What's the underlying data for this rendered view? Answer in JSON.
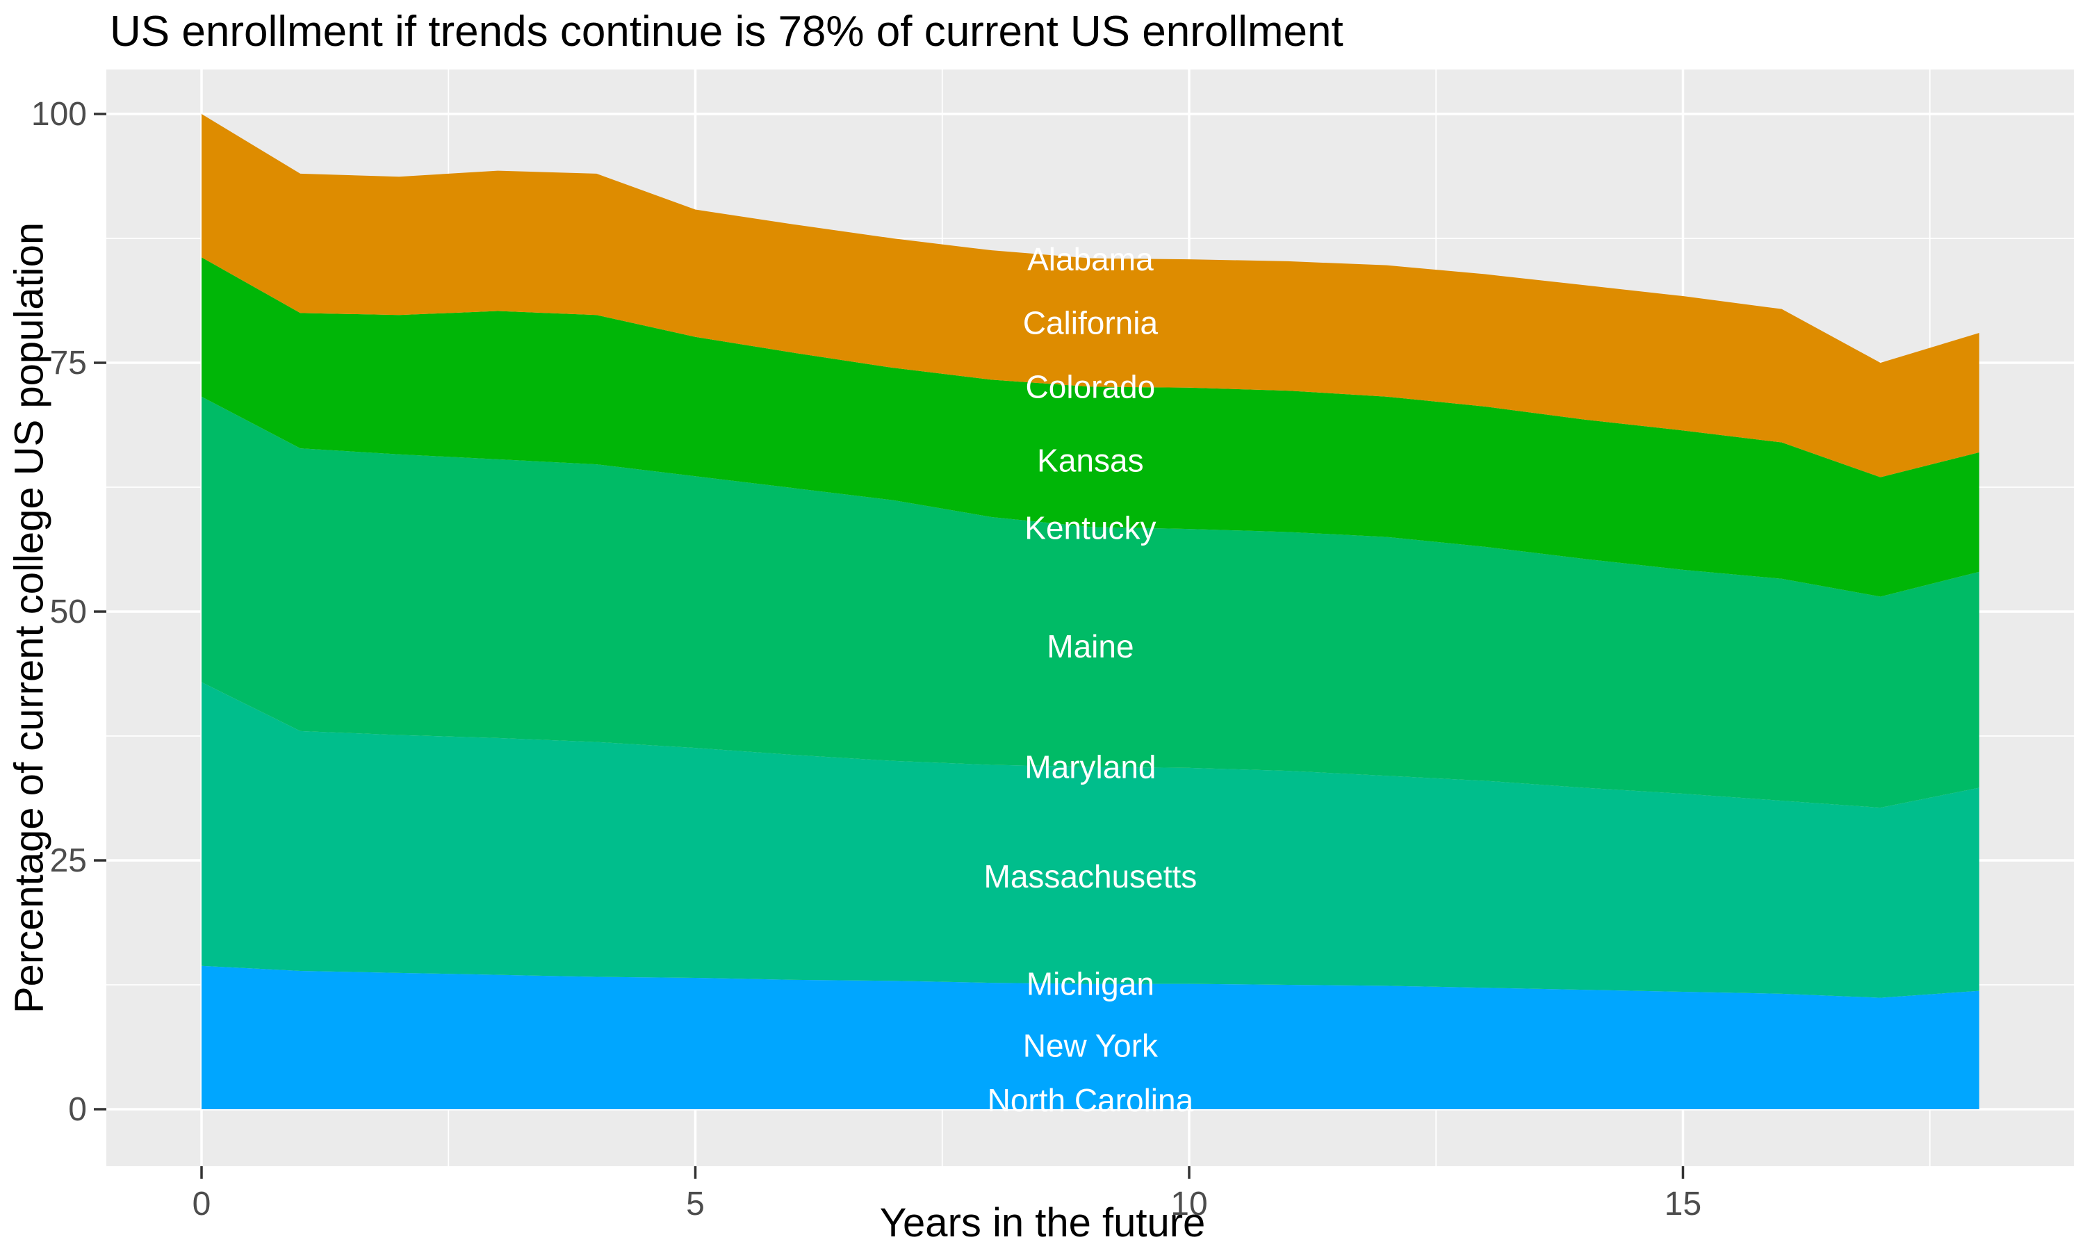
{
  "page": {
    "background": "#FFFFFF"
  },
  "chart_data": {
    "type": "area",
    "variant": "stacked",
    "title": "US enrollment if trends continue is 78% of current US enrollment",
    "xlabel": "Years in the future",
    "ylabel": "Percentage of current college US population",
    "legend_position": "none",
    "grid": "on",
    "panel_background": "#EBEBEB",
    "gridline_color": "#FFFFFF",
    "tick_color": "#333333",
    "tick_label_color": "#4D4D4D",
    "xlim": [
      0,
      18
    ],
    "ylim": [
      0,
      100
    ],
    "x_major_ticks": [
      0,
      5,
      10,
      15
    ],
    "x_minor_ticks": [
      2.5,
      7.5,
      12.5,
      17.5
    ],
    "y_major_ticks": [
      0,
      25,
      50,
      75,
      100
    ],
    "y_minor_ticks": [
      12.5,
      37.5,
      62.5,
      87.5
    ],
    "x": [
      0,
      1,
      2,
      3,
      4,
      5,
      6,
      7,
      8,
      9,
      10,
      11,
      12,
      13,
      14,
      15,
      16,
      17,
      18
    ],
    "series": [
      {
        "name": "New York",
        "color": "#00A6FF",
        "cumulative_top": [
          14.4,
          13.9,
          13.7,
          13.5,
          13.3,
          13.2,
          13.0,
          12.9,
          12.7,
          12.6,
          12.6,
          12.5,
          12.4,
          12.2,
          12.0,
          11.8,
          11.6,
          11.2,
          11.9
        ]
      },
      {
        "name": "Massachusetts",
        "color": "#00BE8C",
        "cumulative_top": [
          42.9,
          38.0,
          37.6,
          37.3,
          36.9,
          36.3,
          35.6,
          35.0,
          34.6,
          34.4,
          34.3,
          34.0,
          33.5,
          33.0,
          32.3,
          31.7,
          31.0,
          30.3,
          32.3
        ]
      },
      {
        "name": "Maine",
        "color": "#00BB66",
        "cumulative_top": [
          71.6,
          66.4,
          65.8,
          65.3,
          64.8,
          63.6,
          62.4,
          61.2,
          59.5,
          58.5,
          58.3,
          58.0,
          57.5,
          56.5,
          55.3,
          54.2,
          53.3,
          51.5,
          54.0
        ]
      },
      {
        "name": "Kansas",
        "color": "#00B607",
        "cumulative_top": [
          85.6,
          80.0,
          79.8,
          80.2,
          79.8,
          77.6,
          76.0,
          74.5,
          73.3,
          72.6,
          72.5,
          72.2,
          71.6,
          70.6,
          69.3,
          68.2,
          67.0,
          63.5,
          66.0
        ]
      },
      {
        "name": "California",
        "color": "#DE8C00",
        "cumulative_top": [
          100.0,
          94.0,
          93.7,
          94.3,
          94.0,
          90.4,
          88.9,
          87.5,
          86.3,
          85.5,
          85.4,
          85.2,
          84.8,
          83.9,
          82.8,
          81.7,
          80.4,
          75.0,
          78.0
        ]
      }
    ],
    "near_zero_states": [
      "Alabama",
      "Colorado",
      "Kentucky",
      "Maryland",
      "Michigan",
      "North Carolina"
    ],
    "state_labels": [
      {
        "text": "Alabama",
        "x": 9,
        "y": 85.4,
        "color": "#FFFFFF"
      },
      {
        "text": "California",
        "x": 9,
        "y": 79.0,
        "color": "#FFFFFF"
      },
      {
        "text": "Colorado",
        "x": 9,
        "y": 72.6,
        "color": "#FFFFFF"
      },
      {
        "text": "Kansas",
        "x": 9,
        "y": 65.2,
        "color": "#FFFFFF"
      },
      {
        "text": "Kentucky",
        "x": 9,
        "y": 58.4,
        "color": "#FFFFFF"
      },
      {
        "text": "Maine",
        "x": 9,
        "y": 46.5,
        "color": "#FFFFFF"
      },
      {
        "text": "Maryland",
        "x": 9,
        "y": 34.4,
        "color": "#FFFFFF"
      },
      {
        "text": "Massachusetts",
        "x": 9,
        "y": 23.4,
        "color": "#FFFFFF"
      },
      {
        "text": "Michigan",
        "x": 9,
        "y": 12.6,
        "color": "#FFFFFF"
      },
      {
        "text": "New York",
        "x": 9,
        "y": 6.4,
        "color": "#FFFFFF"
      },
      {
        "text": "North Carolina",
        "x": 9,
        "y": 0.9,
        "color": "#FFFFFF"
      }
    ]
  }
}
